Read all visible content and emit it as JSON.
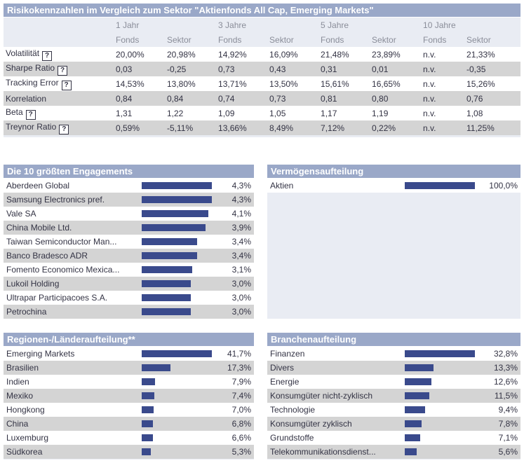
{
  "risk": {
    "title": "Risikokennzahlen im Vergleich zum Sektor \"Aktienfonds All Cap, Emerging Markets\"",
    "periods": [
      "1 Jahr",
      "3 Jahre",
      "5 Jahre",
      "10 Jahre"
    ],
    "sub_fonds": "Fonds",
    "sub_sektor": "Sektor",
    "help_symbol": "?",
    "rows": [
      {
        "label": "Volatilität",
        "help": true,
        "values": [
          "20,00%",
          "20,98%",
          "14,92%",
          "16,09%",
          "21,48%",
          "23,89%",
          "n.v.",
          "21,33%"
        ]
      },
      {
        "label": "Sharpe Ratio",
        "help": true,
        "values": [
          "0,03",
          "-0,25",
          "0,73",
          "0,43",
          "0,31",
          "0,01",
          "n.v.",
          "-0,35"
        ]
      },
      {
        "label": "Tracking Error",
        "help": true,
        "values": [
          "14,53%",
          "13,80%",
          "13,71%",
          "13,50%",
          "15,61%",
          "16,65%",
          "n.v.",
          "15,26%"
        ]
      },
      {
        "label": "Korrelation",
        "help": false,
        "values": [
          "0,84",
          "0,84",
          "0,74",
          "0,73",
          "0,81",
          "0,80",
          "n.v.",
          "0,76"
        ]
      },
      {
        "label": "Beta",
        "help": true,
        "values": [
          "1,31",
          "1,22",
          "1,09",
          "1,05",
          "1,17",
          "1,19",
          "n.v.",
          "1,08"
        ]
      },
      {
        "label": "Treynor Ratio",
        "help": true,
        "values": [
          "0,59%",
          "-5,11%",
          "13,66%",
          "8,49%",
          "7,12%",
          "0,22%",
          "n.v.",
          "11,25%"
        ]
      }
    ]
  },
  "holdings": {
    "title": "Die 10 größten Engagements",
    "items": [
      {
        "label": "Aberdeen Global",
        "pct": "4,3%",
        "value": 4.3
      },
      {
        "label": "Samsung Electronics pref.",
        "pct": "4,3%",
        "value": 4.3
      },
      {
        "label": "Vale SA",
        "pct": "4,1%",
        "value": 4.1
      },
      {
        "label": "China Mobile Ltd.",
        "pct": "3,9%",
        "value": 3.9
      },
      {
        "label": "Taiwan Semiconductor Man...",
        "pct": "3,4%",
        "value": 3.4
      },
      {
        "label": "Banco Bradesco ADR",
        "pct": "3,4%",
        "value": 3.4
      },
      {
        "label": "Fomento Economico Mexica...",
        "pct": "3,1%",
        "value": 3.1
      },
      {
        "label": "Lukoil Holding",
        "pct": "3,0%",
        "value": 3.0
      },
      {
        "label": "Ultrapar Participacoes S.A.",
        "pct": "3,0%",
        "value": 3.0
      },
      {
        "label": "Petrochina",
        "pct": "3,0%",
        "value": 3.0
      }
    ]
  },
  "assets": {
    "title": "Vermögensaufteilung",
    "items": [
      {
        "label": "Aktien",
        "pct": "100,0%",
        "value": 100.0
      }
    ]
  },
  "regions": {
    "title": "Regionen-/Länderaufteilung**",
    "items": [
      {
        "label": "Emerging Markets",
        "pct": "41,7%",
        "value": 41.7
      },
      {
        "label": "Brasilien",
        "pct": "17,3%",
        "value": 17.3
      },
      {
        "label": "Indien",
        "pct": "7,9%",
        "value": 7.9
      },
      {
        "label": "Mexiko",
        "pct": "7,4%",
        "value": 7.4
      },
      {
        "label": "Hongkong",
        "pct": "7,0%",
        "value": 7.0
      },
      {
        "label": "China",
        "pct": "6,8%",
        "value": 6.8
      },
      {
        "label": "Luxemburg",
        "pct": "6,6%",
        "value": 6.6
      },
      {
        "label": "Südkorea",
        "pct": "5,3%",
        "value": 5.3
      }
    ]
  },
  "sectors": {
    "title": "Branchenaufteilung",
    "items": [
      {
        "label": "Finanzen",
        "pct": "32,8%",
        "value": 32.8
      },
      {
        "label": "Divers",
        "pct": "13,3%",
        "value": 13.3
      },
      {
        "label": "Energie",
        "pct": "12,6%",
        "value": 12.6
      },
      {
        "label": "Konsumgüter nicht-zyklisch",
        "pct": "11,5%",
        "value": 11.5
      },
      {
        "label": "Technologie",
        "pct": "9,4%",
        "value": 9.4
      },
      {
        "label": "Konsumgüter zyklisch",
        "pct": "7,8%",
        "value": 7.8
      },
      {
        "label": "Grundstoffe",
        "pct": "7,1%",
        "value": 7.1
      },
      {
        "label": "Telekommunikationsdienst...",
        "pct": "5,6%",
        "value": 5.6
      }
    ]
  },
  "colors": {
    "header_bg": "#9aa8c8",
    "bar": "#3a4a8c",
    "row_gray": "#d4d4d4"
  }
}
